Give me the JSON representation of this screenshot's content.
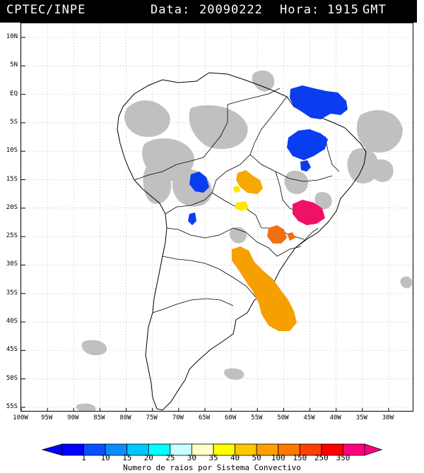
{
  "header": {
    "agency": "CPTEC/INPE",
    "date_label": "Data:",
    "date_value": "20090222",
    "hour_label": "Hora:",
    "hour_value": "1915",
    "tz": "GMT"
  },
  "map": {
    "lat_labels": [
      "10N",
      "5N",
      "EQ",
      "5S",
      "10S",
      "15S",
      "20S",
      "25S",
      "30S",
      "35S",
      "40S",
      "45S",
      "50S",
      "55S"
    ],
    "lon_labels": [
      "100W",
      "95W",
      "90W",
      "85W",
      "80W",
      "75W",
      "70W",
      "65W",
      "60W",
      "55W",
      "50W",
      "45W",
      "40W",
      "35W",
      "30W"
    ],
    "lat_values": [
      10,
      5,
      0,
      -5,
      -10,
      -15,
      -20,
      -25,
      -30,
      -35,
      -40,
      -45,
      -50,
      -55
    ],
    "lon_values": [
      -100,
      -95,
      -90,
      -85,
      -80,
      -75,
      -70,
      -65,
      -60,
      -55,
      -50,
      -45,
      -40,
      -35,
      -30
    ],
    "cloud_color": "#c0c0c0",
    "lightning_clusters": [
      {
        "id": "north-brazil",
        "category": "1",
        "color": "#0a3cf0"
      },
      {
        "id": "northeast-brazil",
        "category": "1",
        "color": "#0a3cf0"
      },
      {
        "id": "bolivia",
        "category": "1",
        "color": "#0a3cf0"
      },
      {
        "id": "mato-grosso",
        "category": "50",
        "color": "#f5a800"
      },
      {
        "id": "paraguay",
        "category": "40",
        "color": "#ffe800"
      },
      {
        "id": "sao-paulo",
        "category": "350",
        "color": "#ee1166"
      },
      {
        "id": "parana",
        "category": "150",
        "color": "#f07010"
      },
      {
        "id": "argentina-uruguay",
        "category": "50",
        "color": "#f5a000"
      }
    ]
  },
  "colorbar": {
    "labels": [
      "1",
      "10",
      "15",
      "20",
      "25",
      "30",
      "35",
      "40",
      "50",
      "100",
      "150",
      "250",
      "350"
    ],
    "colors": [
      "#0000ff",
      "#0a50ff",
      "#0a8cff",
      "#00c8ff",
      "#00ffff",
      "#c8ffff",
      "#ffffc8",
      "#ffff00",
      "#ffc800",
      "#ffa000",
      "#ff7800",
      "#ff4000",
      "#ff0000",
      "#ff0080"
    ],
    "caption": "Numero de raios por Sistema Convectivo"
  }
}
